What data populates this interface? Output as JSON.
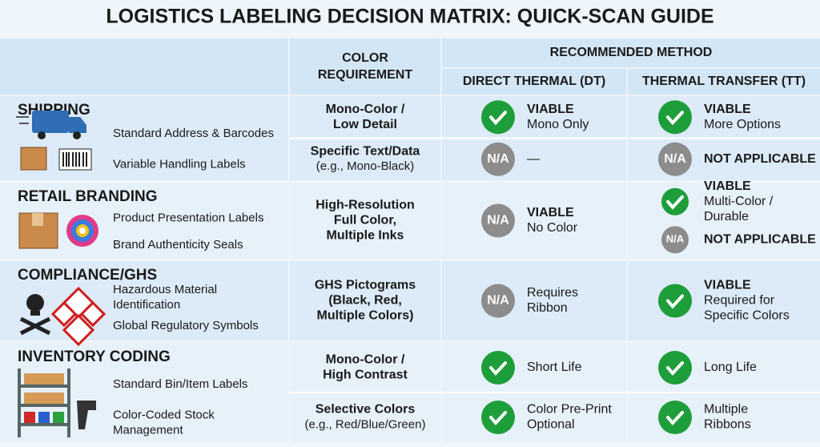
{
  "title": "LOGISTICS LABELING DECISION MATRIX: QUICK-SCAN GUIDE",
  "header": {
    "requirement": [
      "COLOR",
      "REQUIREMENT"
    ],
    "method": "RECOMMENDED METHOD",
    "dt": "DIRECT THERMAL (DT)",
    "tt": "THERMAL TRANSFER (TT)"
  },
  "sections": [
    {
      "name": "SHIPPING",
      "labels": [
        [
          "Standard Address & Barcodes"
        ],
        [
          "Variable Handling Labels"
        ]
      ],
      "requirement": [
        {
          "lines": [
            "Mono-Color /",
            "Low Detail"
          ],
          "color": "#1c9a2c"
        },
        {
          "lines": [
            "Specific Text/Data"
          ],
          "color": "#e8891d",
          "note": "(e.g., Mono-Black)"
        }
      ],
      "dt": [
        {
          "check": true,
          "status": "VIABLE",
          "lines": [
            "Mono Only"
          ]
        },
        {
          "na": "N/A",
          "lines": [
            "—"
          ]
        }
      ],
      "tt": [
        {
          "check": true,
          "status": "VIABLE",
          "lines": [
            "More Options"
          ]
        },
        {
          "na": "N/A",
          "status": "NOT APPLICABLE"
        }
      ]
    },
    {
      "name": "RETAIL BRANDING",
      "labels": [
        [
          "Product Presentation Labels"
        ],
        [
          "Brand Authenticity Seals"
        ]
      ],
      "requirement": [
        {
          "lines": [
            "High-Resolution",
            "Full Color,",
            "Multiple Inks"
          ],
          "color": "#e02020"
        }
      ],
      "dt": [
        {
          "na": "N/A",
          "status": "VIABLE",
          "lines": [
            "No Color"
          ]
        }
      ],
      "tt": [
        {
          "check": true,
          "status": "VIABLE",
          "lines": [
            "Multi-Color /",
            "Durable"
          ]
        },
        {
          "na": "N/A",
          "status": "NOT APPLICABLE"
        }
      ]
    },
    {
      "name": "COMPLIANCE/GHS",
      "labels": [
        [
          "Hazardous Material",
          "Identification"
        ],
        [
          "Global Regulatory Symbols"
        ]
      ],
      "requirement": [
        {
          "lines": [
            "GHS Pictograms",
            "(Black, Red,",
            "Multiple Colors)"
          ],
          "color": "#e02020"
        }
      ],
      "dt": [
        {
          "na": "N/A",
          "lines": [
            "Requires",
            "Ribbon"
          ]
        }
      ],
      "tt": [
        {
          "check": true,
          "status": "VIABLE",
          "lines": [
            "Required for",
            "Specific Colors"
          ]
        }
      ]
    },
    {
      "name": "INVENTORY CODING",
      "labels": [
        [
          "Standard Bin/Item Labels"
        ],
        [
          "Color-Coded Stock",
          "Management"
        ]
      ],
      "requirement": [
        {
          "lines": [
            "Mono-Color /",
            "High Contrast"
          ],
          "color": "#1c9a2c"
        },
        {
          "lines": [
            "Selective Colors"
          ],
          "color": "#1c9a2c",
          "note": "(e.g., Red/Blue/Green)"
        }
      ],
      "dt": [
        {
          "check": true,
          "lines": [
            "Short Life"
          ]
        },
        {
          "check": true,
          "lines": [
            "Color Pre-Print",
            "Optional"
          ]
        }
      ],
      "tt": [
        {
          "check": true,
          "lines": [
            "Long Life"
          ]
        },
        {
          "check": true,
          "lines": [
            "Multiple",
            "Ribbons"
          ]
        }
      ]
    }
  ]
}
